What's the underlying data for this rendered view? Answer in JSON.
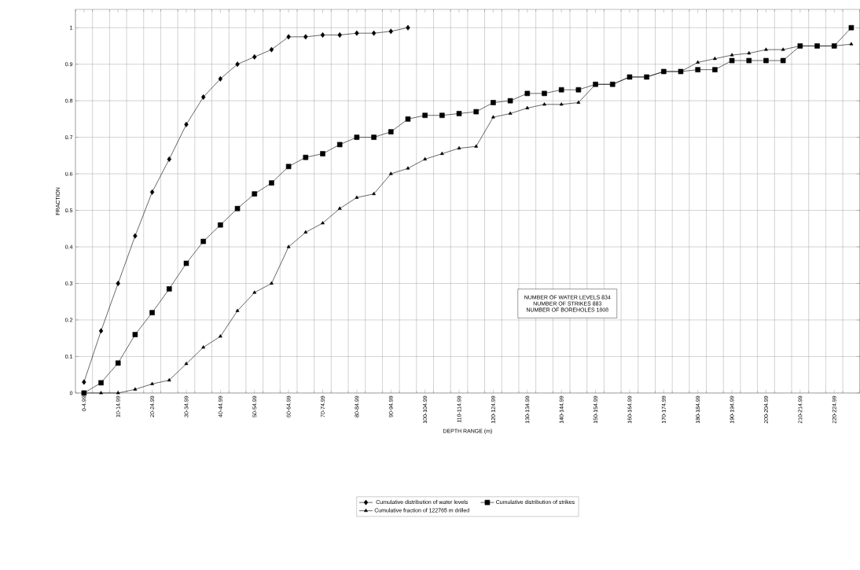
{
  "chart_data": {
    "type": "line",
    "xlabel": "DEPTH RANGE (m)",
    "ylabel": "FRACTION",
    "categories": [
      "0-4.99",
      null,
      "10-14.99",
      null,
      "20-24.99",
      null,
      "30-34.99",
      null,
      "40-44.99",
      null,
      "50-54.99",
      null,
      "60-64.99",
      null,
      "70-74.99",
      null,
      "80-84.99",
      null,
      "90-94.99",
      null,
      "100-104.99",
      null,
      "110-114.99",
      null,
      "120-124.99",
      null,
      "130-134.99",
      null,
      "140-144.99",
      null,
      "150-154.99",
      null,
      "160-164.99",
      null,
      "170-174.99",
      null,
      "180-184.99",
      null,
      "190-194.99",
      null,
      "200-204.99",
      null,
      "210-214.99",
      null,
      "220-224.99",
      null
    ],
    "series": [
      {
        "name": "Cumulative distribution of water levels",
        "color": "#000000",
        "marker": "diamond",
        "values": [
          0.03,
          0.17,
          0.3,
          0.43,
          0.55,
          0.64,
          0.735,
          0.81,
          0.86,
          0.9,
          0.92,
          0.94,
          0.975,
          0.975,
          0.98,
          0.98,
          0.985,
          0.985,
          0.99,
          1.0,
          null,
          null,
          null,
          null,
          null,
          null,
          null,
          null,
          null,
          null,
          null,
          null,
          null,
          null,
          null,
          null,
          null,
          null,
          null,
          null,
          null,
          null,
          null,
          null,
          null,
          null
        ]
      },
      {
        "name": "Cumulative distribution of strikes",
        "color": "#000000",
        "marker": "square",
        "values": [
          0,
          0.028,
          0.082,
          0.16,
          0.22,
          0.285,
          0.355,
          0.415,
          0.46,
          0.505,
          0.545,
          0.575,
          0.62,
          0.645,
          0.655,
          0.68,
          0.7,
          0.7,
          0.715,
          0.75,
          0.76,
          0.76,
          0.765,
          0.77,
          0.795,
          0.8,
          0.82,
          0.82,
          0.83,
          0.83,
          0.845,
          0.845,
          0.865,
          0.865,
          0.88,
          0.88,
          0.885,
          0.885,
          0.91,
          0.91,
          0.91,
          0.91,
          0.95,
          0.95,
          0.95,
          1.0
        ]
      },
      {
        "name": "Cumulative fraction of  122765 m drilled",
        "color": "#000000",
        "marker": "triangle",
        "values": [
          0,
          0,
          0,
          0.01,
          0.025,
          0.035,
          0.08,
          0.125,
          0.155,
          0.225,
          0.275,
          0.3,
          0.4,
          0.44,
          0.465,
          0.505,
          0.535,
          0.545,
          0.6,
          0.615,
          0.64,
          0.655,
          0.67,
          0.675,
          0.755,
          0.765,
          0.78,
          0.79,
          0.79,
          0.795,
          0.845,
          0.845,
          0.865,
          0.865,
          0.88,
          0.88,
          0.905,
          0.915,
          0.925,
          0.93,
          0.94,
          0.94,
          0.95,
          0.95,
          0.95,
          0.955
        ]
      }
    ],
    "ylim": [
      0,
      1.05
    ],
    "yticks": [
      0,
      0.1,
      0.2,
      0.3,
      0.4,
      0.5,
      0.6,
      0.7,
      0.8,
      0.9,
      1
    ],
    "grid": true,
    "legend": "bottom",
    "line_style": "solid",
    "annotations": [
      "NUMBER OF WATER  LEVELS  834",
      "NUMBER OF STRIKES 883",
      "NUMBER OF BOREHOLES 1808"
    ]
  }
}
